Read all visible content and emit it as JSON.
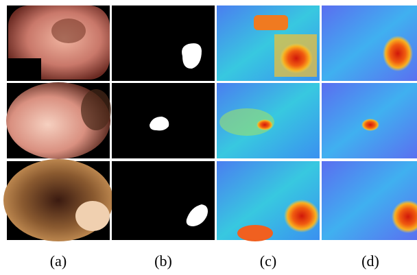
{
  "figure": {
    "captions": [
      "(a)",
      "(b)",
      "(c)",
      "(d)"
    ]
  }
}
